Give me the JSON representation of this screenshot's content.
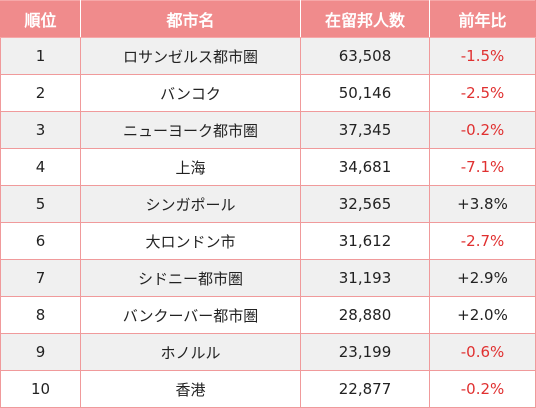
{
  "table": {
    "headers": [
      "順位",
      "都市名",
      "在留邦人数",
      "前年比"
    ],
    "rows": [
      {
        "rank": "1",
        "city": "ロサンゼルス都市圏",
        "population": "63,508",
        "change": "-1.5%"
      },
      {
        "rank": "2",
        "city": "バンコク",
        "population": "50,146",
        "change": "-2.5%"
      },
      {
        "rank": "3",
        "city": "ニューヨーク都市圏",
        "population": "37,345",
        "change": "-0.2%"
      },
      {
        "rank": "4",
        "city": "上海",
        "population": "34,681",
        "change": "-7.1%"
      },
      {
        "rank": "5",
        "city": "シンガポール",
        "population": "32,565",
        "change": "+3.8%"
      },
      {
        "rank": "6",
        "city": "大ロンドン市",
        "population": "31,612",
        "change": "-2.7%"
      },
      {
        "rank": "7",
        "city": "シドニー都市圏",
        "population": "31,193",
        "change": "+2.9%"
      },
      {
        "rank": "8",
        "city": "バンクーバー都市圏",
        "population": "28,880",
        "change": "+2.0%"
      },
      {
        "rank": "9",
        "city": "ホノルル",
        "population": "23,199",
        "change": "-0.6%"
      },
      {
        "rank": "10",
        "city": "香港",
        "population": "22,877",
        "change": "-0.2%"
      }
    ]
  },
  "colors": {
    "header_bg": "#f08b8c",
    "negative": "#e03030",
    "positive": "#222222",
    "row_alt": "#f0f0f0"
  }
}
